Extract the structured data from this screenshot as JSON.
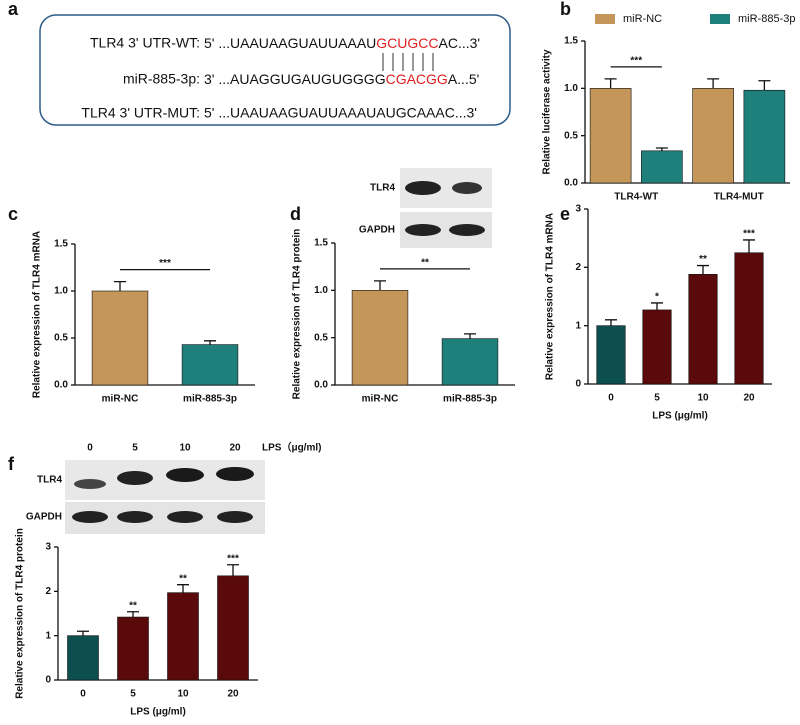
{
  "panels": [
    "a",
    "b",
    "c",
    "d",
    "e",
    "f"
  ],
  "seed_diagram": {
    "rows": [
      {
        "label": "TLR4 3' UTR-WT:",
        "sequence": [
          "5' ...UAAUAAGUAUUAAAU",
          "GCUGCC",
          "AC...3'"
        ]
      },
      {
        "label": "miR-885-3p:",
        "sequence": [
          "3'   ...AUAGGUGAUGUGGGG",
          "CGACGG",
          "A...5'"
        ]
      },
      {
        "label": "TLR4 3' UTR-MUT:",
        "sequence": [
          "5' ...UAAUAAGUAUUAAAUAUGCAAAC...3'"
        ]
      }
    ]
  },
  "blot_d": {
    "rows": [
      "TLR4",
      "GAPDH"
    ]
  },
  "blot_f": {
    "columns": [
      "0",
      "5",
      "10",
      "20"
    ],
    "treatment": "LPS（μg/ml)",
    "rows": [
      "TLR4",
      "GAPDH"
    ]
  },
  "chart_data": [
    {
      "type": "bar",
      "ylabel": "Relative luciferase activity",
      "categories": [
        "TLR4-WT",
        "TLR4-MUT"
      ],
      "series": [
        {
          "name": "miR-NC",
          "color": "#c4965a",
          "values": [
            1.0,
            1.0
          ],
          "errors": [
            0.1,
            0.1
          ]
        },
        {
          "name": "miR-885-3p",
          "color": "#1f7f7a",
          "values": [
            0.34,
            0.98
          ],
          "errors": [
            0.03,
            0.1
          ]
        }
      ],
      "significance": "***",
      "legend": "top",
      "ylim": [
        0,
        1.5
      ],
      "yticks": [
        {
          "value": 0,
          "label": "0.0"
        },
        {
          "value": 0.5,
          "label": "0.5"
        },
        {
          "value": 1,
          "label": "1.0"
        },
        {
          "value": 1.5,
          "label": "1.5"
        }
      ]
    },
    {
      "type": "bar",
      "ylabel": "Relative expression of TLR4 mRNA",
      "categories": [
        "miR-NC",
        "miR-885-3p"
      ],
      "values": [
        1.0,
        0.43
      ],
      "errors": [
        0.1,
        0.04
      ],
      "colors": [
        "#c4965a",
        "#1f7f7a"
      ],
      "significance": "***",
      "ylim": [
        0,
        1.5
      ],
      "yticks": [
        {
          "value": 0,
          "label": "0.0"
        },
        {
          "value": 0.5,
          "label": "0.5"
        },
        {
          "value": 1,
          "label": "1.0"
        },
        {
          "value": 1.5,
          "label": "1.5"
        }
      ]
    },
    {
      "type": "bar",
      "ylabel": "Relative expression of TLR4 protein",
      "categories": [
        "miR-NC",
        "miR-885-3p"
      ],
      "values": [
        1.0,
        0.49
      ],
      "errors": [
        0.1,
        0.05
      ],
      "colors": [
        "#c4965a",
        "#1f7f7a"
      ],
      "significance": "**",
      "ylim": [
        0,
        1.5
      ],
      "yticks": [
        {
          "value": 0,
          "label": "0.0"
        },
        {
          "value": 0.5,
          "label": "0.5"
        },
        {
          "value": 1,
          "label": "1.0"
        },
        {
          "value": 1.5,
          "label": "1.5"
        }
      ]
    },
    {
      "type": "bar",
      "ylabel": "Relative expression of TLR4 mRNA",
      "xlabel": "LPS (μg/ml)",
      "categories": [
        "0",
        "5",
        "10",
        "20"
      ],
      "values": [
        1.0,
        1.27,
        1.88,
        2.25
      ],
      "errors": [
        0.1,
        0.12,
        0.15,
        0.22
      ],
      "colors": [
        "#0d4f4f",
        "#5a0a0a",
        "#5a0a0a",
        "#5a0a0a"
      ],
      "significance": [
        null,
        "*",
        "**",
        "***"
      ],
      "ylim": [
        0,
        3
      ],
      "yticks": [
        0,
        1,
        2,
        3
      ]
    },
    {
      "type": "bar",
      "ylabel": "Relative expression of TLR4 protein",
      "xlabel": "LPS (μg/ml)",
      "categories": [
        "0",
        "5",
        "10",
        "20"
      ],
      "values": [
        1.0,
        1.42,
        1.97,
        2.35
      ],
      "errors": [
        0.1,
        0.12,
        0.18,
        0.25
      ],
      "colors": [
        "#0d4f4f",
        "#5a0a0a",
        "#5a0a0a",
        "#5a0a0a"
      ],
      "significance": [
        null,
        "**",
        "**",
        "***"
      ],
      "ylim": [
        0,
        3
      ],
      "yticks": [
        0,
        1,
        2,
        3
      ]
    }
  ]
}
